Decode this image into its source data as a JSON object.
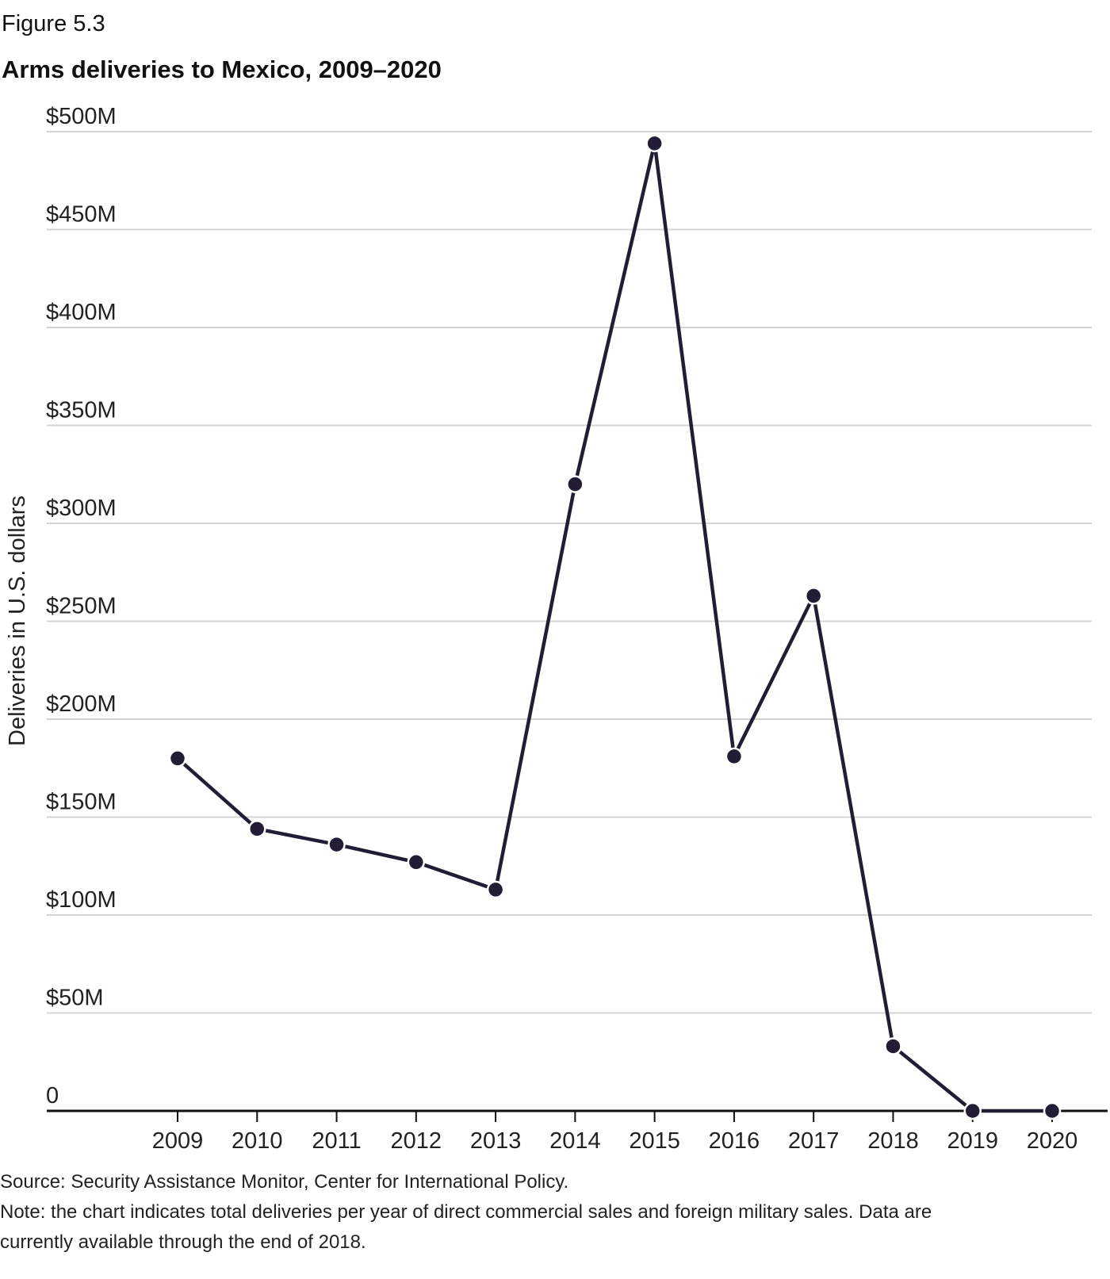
{
  "figure_label": "Figure 5.3",
  "chart_data": {
    "type": "line",
    "title": "Arms deliveries to Mexico, 2009–2020",
    "xlabel": "",
    "ylabel": "Deliveries in U.S. dollars",
    "x": [
      "2009",
      "2010",
      "2011",
      "2012",
      "2013",
      "2014",
      "2015",
      "2016",
      "2017",
      "2018",
      "2019",
      "2020"
    ],
    "values": [
      180,
      144,
      136,
      127,
      113,
      320,
      494,
      181,
      263,
      33,
      0,
      0
    ],
    "unit": "million USD",
    "ylim": [
      0,
      500
    ],
    "yticks": [
      0,
      50,
      100,
      150,
      200,
      250,
      300,
      350,
      400,
      450,
      500
    ],
    "ytick_labels": [
      "0",
      "$50M",
      "$100M",
      "$150M",
      "$200M",
      "$250M",
      "$300M",
      "$350M",
      "$400M",
      "$450M",
      "$500M"
    ],
    "grid": true,
    "line_color": "#221d35",
    "grid_color": "#d4d4d4"
  },
  "source": "Source: Security Assistance Monitor, Center for International Policy.",
  "note_line1": "Note: the chart indicates total deliveries per year of direct commercial sales and foreign military sales. Data are",
  "note_line2": "currently available through the end of 2018."
}
